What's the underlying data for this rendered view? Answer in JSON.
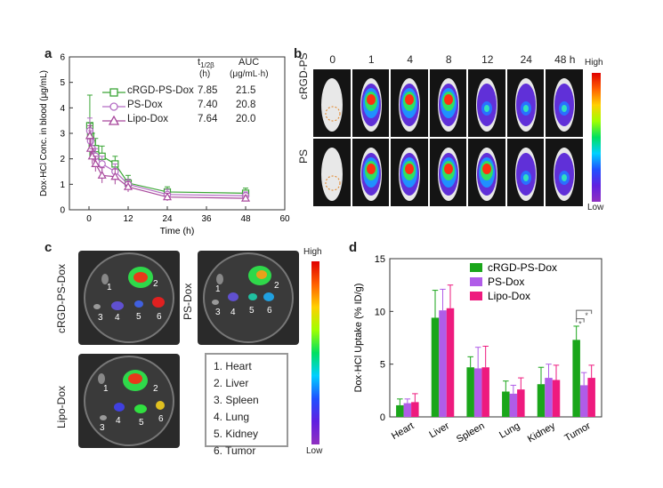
{
  "panels": {
    "a": "a",
    "b": "b",
    "c": "c",
    "d": "d"
  },
  "panel_a": {
    "header_t": "t",
    "header_t_sub": "1/2β",
    "header_t_unit": "(h)",
    "header_auc": "AUC",
    "header_auc_unit": "(μg/mL·h)",
    "rows": [
      {
        "name": "cRGD-PS-Dox",
        "t": "7.85",
        "auc": "21.5"
      },
      {
        "name": "PS-Dox",
        "t": "7.40",
        "auc": "20.8"
      },
      {
        "name": "Lipo-Dox",
        "t": "7.64",
        "auc": "20.0"
      }
    ]
  },
  "panel_b": {
    "timepoints": [
      "0",
      "1",
      "4",
      "8",
      "12",
      "24",
      "48 h"
    ],
    "rows": [
      "cRGD-PS",
      "PS"
    ],
    "colorbar_high": "High",
    "colorbar_low": "Low"
  },
  "panel_c": {
    "labels": [
      "cRGD-PS-Dox",
      "PS-Dox",
      "Lipo-Dox"
    ],
    "organ_numbers": [
      "1",
      "2",
      "3",
      "4",
      "5",
      "6"
    ],
    "legend": [
      "1. Heart",
      "2. Liver",
      "3. Spleen",
      "4. Lung",
      "5. Kidney",
      "6. Tumor"
    ],
    "colorbar_high": "High",
    "colorbar_low": "Low"
  },
  "chart_data": [
    {
      "type": "line",
      "xlabel": "Time (h)",
      "ylabel": "Dox·HCl Conc. in blood (μg/mL)",
      "xlim": [
        -6,
        60
      ],
      "ylim": [
        0,
        6
      ],
      "xticks": [
        0,
        12,
        24,
        36,
        48,
        60
      ],
      "yticks": [
        0,
        1,
        2,
        3,
        4,
        5,
        6
      ],
      "series": [
        {
          "name": "cRGD-PS-Dox",
          "color": "#3aa535",
          "marker": "square",
          "x": [
            0.25,
            0.5,
            1,
            2,
            4,
            8,
            12,
            24,
            48
          ],
          "y": [
            3.3,
            2.9,
            2.6,
            2.4,
            2.1,
            1.8,
            1.05,
            0.7,
            0.65
          ],
          "err": [
            1.2,
            0.5,
            0.4,
            0.4,
            0.4,
            0.3,
            0.3,
            0.2,
            0.2
          ]
        },
        {
          "name": "PS-Dox",
          "color": "#b46cc4",
          "marker": "circle",
          "x": [
            0.25,
            0.5,
            1,
            2,
            4,
            8,
            12,
            24,
            48
          ],
          "y": [
            3.1,
            2.7,
            2.4,
            2.1,
            1.8,
            1.5,
            1.0,
            0.6,
            0.55
          ],
          "err": [
            0.5,
            0.4,
            0.4,
            0.3,
            0.3,
            0.3,
            0.2,
            0.2,
            0.15
          ]
        },
        {
          "name": "Lipo-Dox",
          "color": "#a8489c",
          "marker": "triangle",
          "x": [
            0.25,
            0.5,
            1,
            2,
            4,
            8,
            12,
            24,
            48
          ],
          "y": [
            2.9,
            2.4,
            2.1,
            1.8,
            1.35,
            1.3,
            0.9,
            0.5,
            0.45
          ],
          "err": [
            0.4,
            0.4,
            0.3,
            0.3,
            0.3,
            0.3,
            0.2,
            0.15,
            0.1
          ]
        }
      ]
    },
    {
      "type": "bar",
      "ylabel": "Dox·HCl Uptake (% ID/g)",
      "ylim": [
        0,
        15
      ],
      "yticks": [
        0,
        5,
        10,
        15
      ],
      "categories": [
        "Heart",
        "Liver",
        "Spleen",
        "Lung",
        "Kidney",
        "Tumor"
      ],
      "series": [
        {
          "name": "cRGD-PS-Dox",
          "color": "#1aa61a",
          "values": [
            1.1,
            9.4,
            4.7,
            2.4,
            3.1,
            7.3
          ],
          "err": [
            0.6,
            2.6,
            1.0,
            1.0,
            1.6,
            1.3
          ]
        },
        {
          "name": "PS-Dox",
          "color": "#b05ce8",
          "values": [
            1.3,
            10.1,
            4.6,
            2.2,
            3.7,
            3.0
          ],
          "err": [
            0.4,
            2.0,
            2.0,
            0.8,
            1.3,
            1.2
          ]
        },
        {
          "name": "Lipo-Dox",
          "color": "#ee1a7e",
          "values": [
            1.4,
            10.3,
            4.7,
            2.6,
            3.5,
            3.7
          ],
          "err": [
            0.8,
            2.2,
            2.0,
            1.1,
            1.4,
            1.2
          ]
        }
      ],
      "annotations": [
        "*",
        "*"
      ]
    }
  ]
}
